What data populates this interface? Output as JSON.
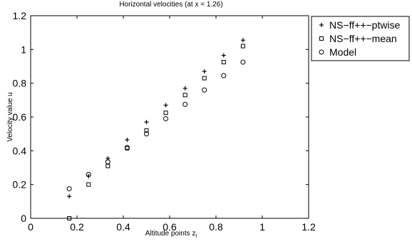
{
  "chart_data": {
    "type": "scatter",
    "title": "Horizontal velocities (at x = 1.26)",
    "xlabel": "Altitude points z",
    "xlabel_subscript": "i",
    "ylabel": "Velocity value u",
    "xlim": [
      0,
      1.2
    ],
    "ylim": [
      0,
      1.2
    ],
    "xticks": [
      "0",
      "0.2",
      "0.4",
      "0.6",
      "0.8",
      "1",
      "1.2"
    ],
    "yticks": [
      "0",
      "0.2",
      "0.4",
      "0.6",
      "0.8",
      "1",
      "1.2"
    ],
    "grid": false,
    "legend_position": "outside-top-right",
    "x": [
      0.1667,
      0.25,
      0.3333,
      0.4167,
      0.5,
      0.5833,
      0.6667,
      0.75,
      0.8333,
      0.9167
    ],
    "series": [
      {
        "name": "NS−ff++−ptwise",
        "marker": "plus",
        "values": [
          0.13,
          0.25,
          0.355,
          0.465,
          0.57,
          0.67,
          0.77,
          0.87,
          0.965,
          1.055
        ]
      },
      {
        "name": "NS−ff++−mean",
        "marker": "square",
        "values": [
          0.0,
          0.2,
          0.31,
          0.415,
          0.52,
          0.625,
          0.73,
          0.83,
          0.925,
          1.02
        ]
      },
      {
        "name": "Model",
        "marker": "circle",
        "values": [
          0.175,
          0.26,
          0.335,
          0.42,
          0.5,
          0.59,
          0.675,
          0.76,
          0.845,
          0.925
        ]
      }
    ]
  }
}
